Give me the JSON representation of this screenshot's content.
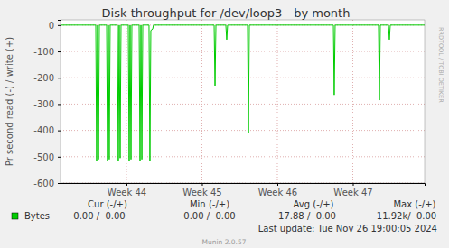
{
  "chart_data": {
    "type": "line",
    "title": "Disk throughput for /dev/loop3 - by month",
    "ylabel": "Pr second read (-) / write (+)",
    "x": [
      43.126,
      43.593,
      43.605,
      43.617,
      43.629,
      43.641,
      43.737,
      43.749,
      43.76,
      43.772,
      43.784,
      43.88,
      43.892,
      43.904,
      43.916,
      43.928,
      44.024,
      44.036,
      44.048,
      44.06,
      44.072,
      44.168,
      44.18,
      44.192,
      44.204,
      44.216,
      44.299,
      44.311,
      44.323,
      44.347,
      44.359,
      45.162,
      45.174,
      45.186,
      45.317,
      45.329,
      45.341,
      45.605,
      45.617,
      45.629,
      46.743,
      46.754,
      46.766,
      47.341,
      47.353,
      47.365,
      47.473,
      47.485,
      47.497,
      47.952
    ],
    "series": [
      {
        "name": "Bytes",
        "color": "#00cc00",
        "values": [
          0,
          0,
          -515,
          0,
          -510,
          0,
          0,
          -515,
          0,
          -510,
          0,
          0,
          -515,
          0,
          -505,
          0,
          0,
          -515,
          0,
          -510,
          0,
          0,
          -515,
          0,
          -510,
          0,
          0,
          -515,
          -20,
          -15,
          0,
          0,
          -230,
          0,
          0,
          -55,
          0,
          0,
          -410,
          0,
          0,
          -265,
          0,
          0,
          -285,
          0,
          0,
          -55,
          0,
          0
        ]
      }
    ],
    "xlim": [
      43.126,
      47.952
    ],
    "xticks": [
      {
        "value": 44,
        "label": "Week 44"
      },
      {
        "value": 45,
        "label": "Week 45"
      },
      {
        "value": 46,
        "label": "Week 46"
      },
      {
        "value": 47,
        "label": "Week 47"
      }
    ],
    "ylim": [
      -600,
      20
    ],
    "yticks": [
      0,
      -100,
      -200,
      -300,
      -400,
      -500,
      -600
    ],
    "grid": true,
    "legend": "bottom-left",
    "stats": {
      "columns": [
        "Cur (-/+)",
        "Min (-/+)",
        "Avg (-/+)",
        "Max (-/+)"
      ],
      "values": [
        "0.00 /  0.00",
        "0.00 /  0.00",
        "17.88 /  0.00",
        "11.92k/  0.00"
      ]
    },
    "last_update": "Last update: Tue Nov 26 19:00:05 2024",
    "footer": "Munin 2.0.57",
    "watermark": "RRDTOOL / TOBI OETIKER"
  }
}
